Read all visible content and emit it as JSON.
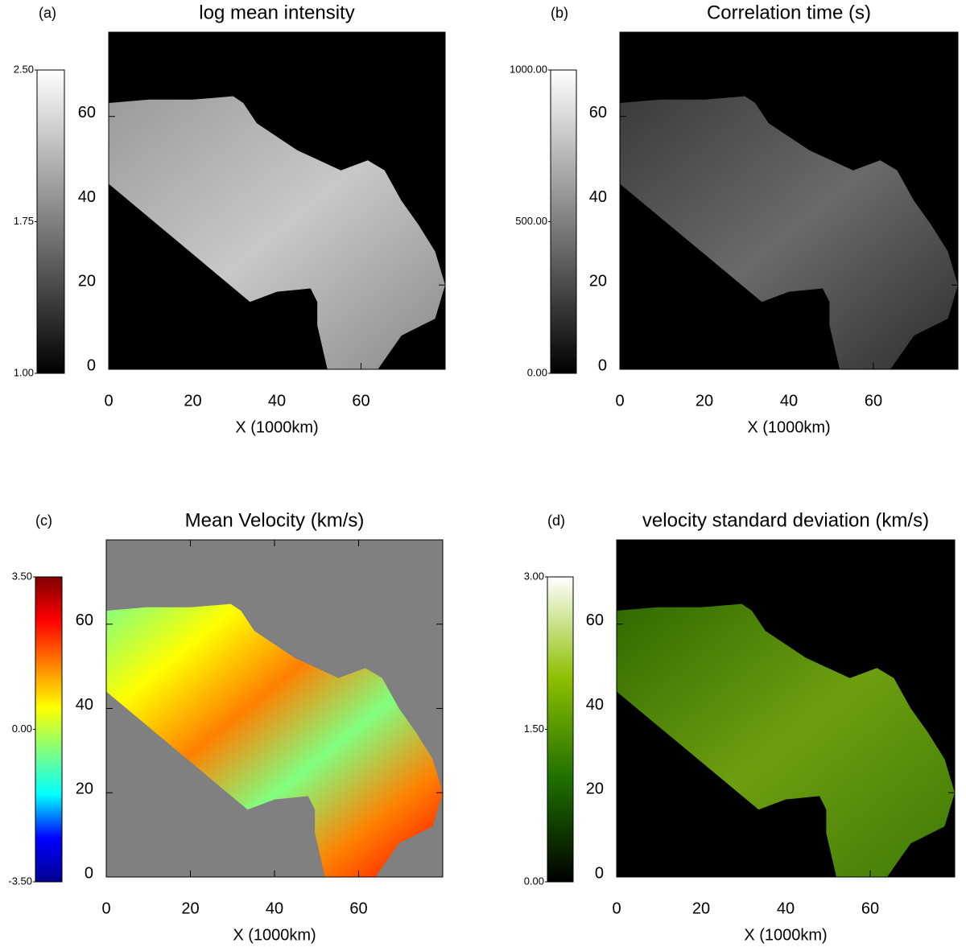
{
  "chart_data": [
    {
      "type": "heatmap",
      "panel_label": "(a)",
      "title": "log mean intensity",
      "xlabel": "X (1000km)",
      "xlim": [
        0,
        80
      ],
      "ylim": [
        0,
        80
      ],
      "xticks": [
        0,
        20,
        40,
        60
      ],
      "yticks": [
        0,
        20,
        40,
        60
      ],
      "background": "#000000",
      "colorbar": {
        "lim": [
          1,
          2.5
        ],
        "ticks": [
          {
            "value": 1,
            "label": "1.00"
          },
          {
            "value": 1.75,
            "label": "1.75"
          },
          {
            "value": 2.5,
            "label": "2.50"
          }
        ],
        "colors": [
          "#000000",
          "#808080",
          "#ffffff"
        ]
      }
    },
    {
      "type": "heatmap",
      "panel_label": "(b)",
      "title": "Correlation time (s)",
      "xlabel": "X (1000km)",
      "xlim": [
        0,
        80
      ],
      "ylim": [
        0,
        80
      ],
      "xticks": [
        0,
        20,
        40,
        60
      ],
      "yticks": [
        0,
        20,
        40,
        60
      ],
      "background": "#000000",
      "colorbar": {
        "lim": [
          0,
          1000
        ],
        "ticks": [
          {
            "value": 0,
            "label": "0.00"
          },
          {
            "value": 500,
            "label": "500.00"
          },
          {
            "value": 1000,
            "label": "1000.00"
          }
        ],
        "colors": [
          "#000000",
          "#808080",
          "#ffffff"
        ]
      }
    },
    {
      "type": "heatmap",
      "panel_label": "(c)",
      "title": "Mean Velocity (km/s)",
      "xlabel": "X (1000km)",
      "xlim": [
        0,
        80
      ],
      "ylim": [
        0,
        80
      ],
      "xticks": [
        0,
        20,
        40,
        60
      ],
      "yticks": [
        0,
        20,
        40,
        60
      ],
      "background": "#808080",
      "colorbar": {
        "lim": [
          -3.5,
          3.5
        ],
        "ticks": [
          {
            "value": -3.5,
            "label": "-3.50"
          },
          {
            "value": 0,
            "label": "0.00"
          },
          {
            "value": 3.5,
            "label": "3.50"
          }
        ],
        "colors": [
          "#00008f",
          "#0000ff",
          "#00ffff",
          "#80ff80",
          "#ffff00",
          "#ff8000",
          "#ff0000",
          "#800000"
        ]
      }
    },
    {
      "type": "heatmap",
      "panel_label": "(d)",
      "title": "velocity standard deviation (km/s)",
      "xlabel": "X (1000km)",
      "xlim": [
        0,
        80
      ],
      "ylim": [
        0,
        80
      ],
      "xticks": [
        0,
        20,
        40,
        60
      ],
      "yticks": [
        0,
        20,
        40,
        60
      ],
      "background": "#000000",
      "colorbar": {
        "lim": [
          0,
          3
        ],
        "ticks": [
          {
            "value": 0,
            "label": "0.00"
          },
          {
            "value": 1.5,
            "label": "1.50"
          },
          {
            "value": 3,
            "label": "3.00"
          }
        ],
        "colors": [
          "#000000",
          "#1e6e00",
          "#8cbf00",
          "#ffffff"
        ]
      }
    }
  ]
}
